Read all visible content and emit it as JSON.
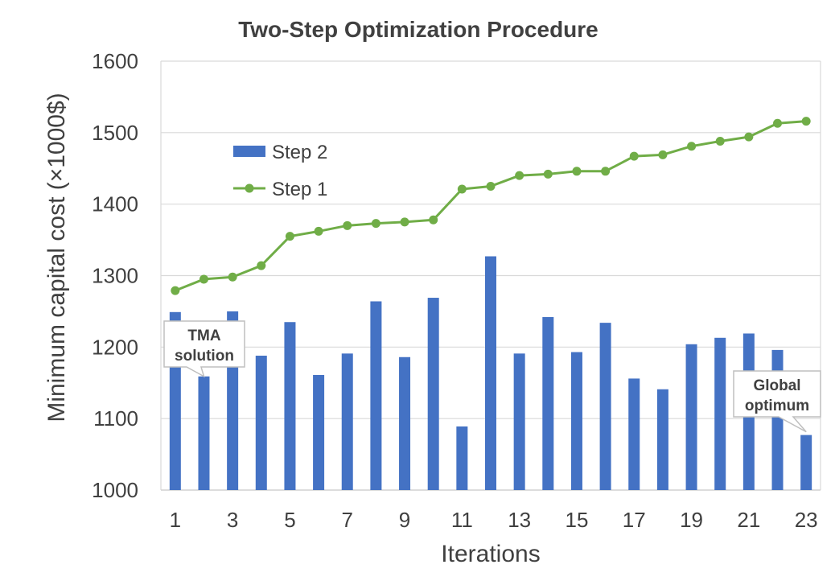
{
  "chart_data": {
    "type": "bar+line",
    "title": "Two-Step Optimization Procedure",
    "xlabel": "Iterations",
    "ylabel": "Minimum capital cost (×1000$)",
    "ylim": [
      1000,
      1600
    ],
    "y_ticks": [
      1000,
      1100,
      1200,
      1300,
      1400,
      1500,
      1600
    ],
    "x": [
      1,
      2,
      3,
      4,
      5,
      6,
      7,
      8,
      9,
      10,
      11,
      12,
      13,
      14,
      15,
      16,
      17,
      18,
      19,
      20,
      21,
      22,
      23
    ],
    "x_tick_labels": [
      "1",
      "3",
      "5",
      "7",
      "9",
      "11",
      "13",
      "15",
      "17",
      "19",
      "21",
      "23"
    ],
    "x_tick_label_values": [
      1,
      3,
      5,
      7,
      9,
      11,
      13,
      15,
      17,
      19,
      21,
      23
    ],
    "grid": true,
    "legend_position": "upper-left",
    "series": [
      {
        "name": "Step 2",
        "type": "bar",
        "color": "#4472C4",
        "values": [
          1249,
          1159,
          1250,
          1188,
          1235,
          1161,
          1191,
          1264,
          1186,
          1269,
          1089,
          1327,
          1191,
          1242,
          1193,
          1234,
          1156,
          1141,
          1204,
          1213,
          1219,
          1196,
          1077
        ]
      },
      {
        "name": "Step 1",
        "type": "line",
        "color": "#70AD47",
        "values": [
          1279,
          1295,
          1298,
          1314,
          1355,
          1362,
          1370,
          1373,
          1375,
          1378,
          1421,
          1425,
          1440,
          1442,
          1446,
          1446,
          1467,
          1469,
          1481,
          1488,
          1494,
          1513,
          1516
        ]
      }
    ],
    "annotations": [
      {
        "name": "tma-solution",
        "lines": [
          "TMA",
          "solution"
        ],
        "points_to_iteration": 2
      },
      {
        "name": "global-optimum",
        "lines": [
          "Global",
          "optimum"
        ],
        "points_to_iteration": 23
      }
    ]
  }
}
